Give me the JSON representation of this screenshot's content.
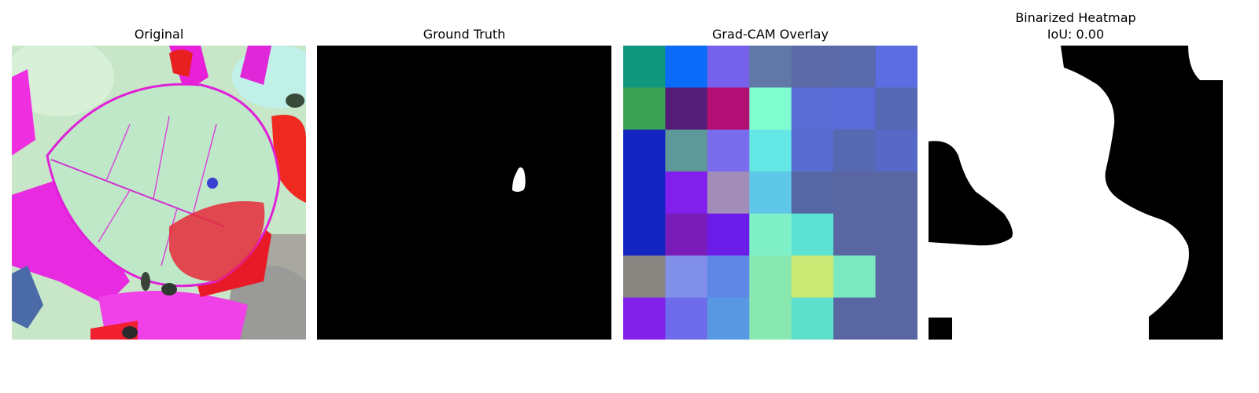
{
  "panels": [
    {
      "id": "original",
      "title": "Original"
    },
    {
      "id": "ground_truth",
      "title": "Ground Truth"
    },
    {
      "id": "gradcam",
      "title": "Grad-CAM Overlay"
    },
    {
      "id": "binarized",
      "title": "Binarized Heatmap",
      "subtitle": "IoU: 0.00"
    }
  ],
  "gradcam_grid": {
    "rows": 7,
    "cols": 7,
    "colors": [
      [
        "#12977f",
        "#0a6cf8",
        "#7561ec",
        "#6078a6",
        "#5d6aa8",
        "#5a6aaa",
        "#5b6de0"
      ],
      [
        "#3ba154",
        "#541d78",
        "#b30e73",
        "#80fdd1",
        "#5a6bd6",
        "#5b6ad9",
        "#5668b4"
      ],
      [
        "#1225c0",
        "#5e9898",
        "#7a6cec",
        "#64e6e5",
        "#5a6bd0",
        "#5668b0",
        "#5768c6"
      ],
      [
        "#1225c0",
        "#8120ec",
        "#a28cb8",
        "#5fc8e8",
        "#5668a4",
        "#5a66a2",
        "#5a66a2"
      ],
      [
        "#1225c0",
        "#7a1cb8",
        "#6a1ce8",
        "#80f0c8",
        "#5ce1d2",
        "#5a66a2",
        "#5a66a2"
      ],
      [
        "#888480",
        "#8090e8",
        "#5f88e6",
        "#88e8b0",
        "#cce874",
        "#7ae8c0",
        "#5a66a2"
      ],
      [
        "#8020e8",
        "#6e6aec",
        "#5898e2",
        "#88e8b0",
        "#5ce0cc",
        "#5a66a2",
        "#5a66a2"
      ]
    ]
  },
  "colors": {
    "mask_background": "#000000",
    "mask_foreground": "#ffffff"
  }
}
